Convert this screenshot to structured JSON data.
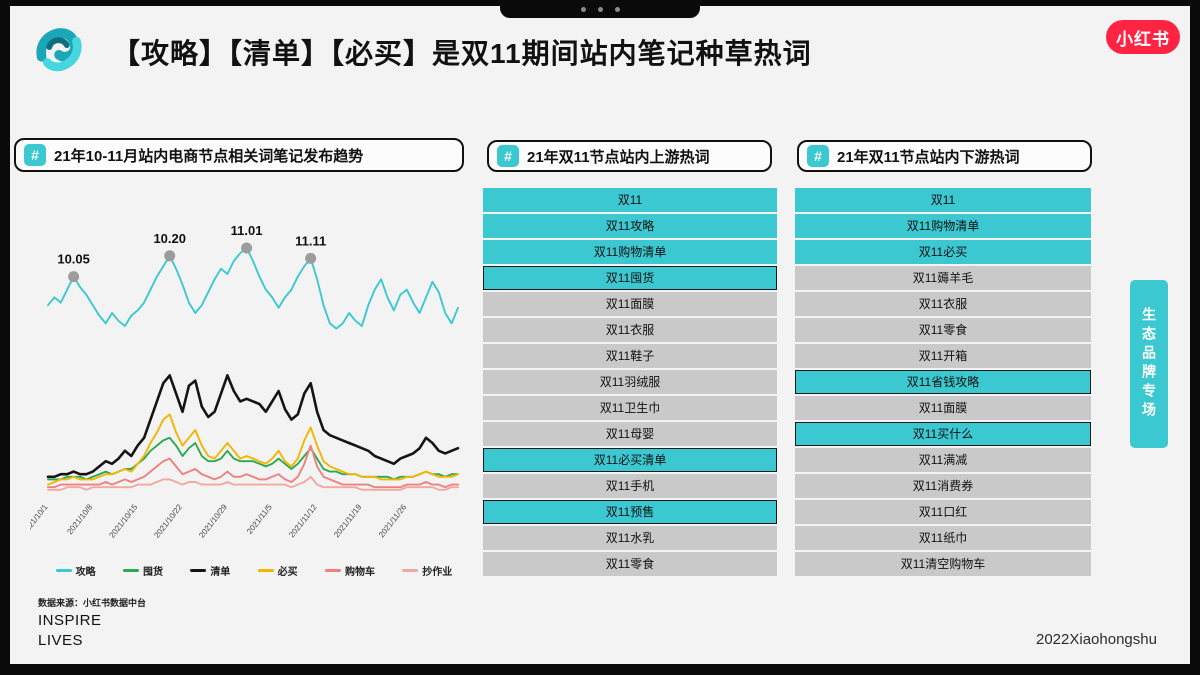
{
  "colors": {
    "accent_teal": "#3CC8D0",
    "row_gray": "#C9C9C9",
    "brand_red": "#FF2442",
    "annotation_dot": "#9C9C9C",
    "frame_black": "#0A0A0A"
  },
  "header": {
    "title": "【攻略】【清单】【必买】是双11期间站内笔记种草热词",
    "brand_badge": "小红书"
  },
  "panels": {
    "trend": {
      "badge": "#",
      "title": "21年10-11月站内电商节点相关词笔记发布趋势",
      "source": "数据来源：小红书数据中台"
    },
    "upstream": {
      "badge": "#",
      "title": "21年双11节点站内上游热词",
      "items": [
        {
          "label": "双11",
          "highlight": true,
          "outlined": false
        },
        {
          "label": "双11攻略",
          "highlight": true,
          "outlined": false
        },
        {
          "label": "双11购物清单",
          "highlight": true,
          "outlined": false
        },
        {
          "label": "双11囤货",
          "highlight": true,
          "outlined": true
        },
        {
          "label": "双11面膜",
          "highlight": false,
          "outlined": false
        },
        {
          "label": "双11衣服",
          "highlight": false,
          "outlined": false
        },
        {
          "label": "双11鞋子",
          "highlight": false,
          "outlined": false
        },
        {
          "label": "双11羽绒服",
          "highlight": false,
          "outlined": false
        },
        {
          "label": "双11卫生巾",
          "highlight": false,
          "outlined": false
        },
        {
          "label": "双11母婴",
          "highlight": false,
          "outlined": false
        },
        {
          "label": "双11必买清单",
          "highlight": true,
          "outlined": true
        },
        {
          "label": "双11手机",
          "highlight": false,
          "outlined": false
        },
        {
          "label": "双11预售",
          "highlight": true,
          "outlined": true
        },
        {
          "label": "双11水乳",
          "highlight": false,
          "outlined": false
        },
        {
          "label": "双11零食",
          "highlight": false,
          "outlined": false
        }
      ]
    },
    "downstream": {
      "badge": "#",
      "title": "21年双11节点站内下游热词",
      "items": [
        {
          "label": "双11",
          "highlight": true,
          "outlined": false
        },
        {
          "label": "双11购物清单",
          "highlight": true,
          "outlined": false
        },
        {
          "label": "双11必买",
          "highlight": true,
          "outlined": false
        },
        {
          "label": "双11薅羊毛",
          "highlight": false,
          "outlined": false
        },
        {
          "label": "双11衣服",
          "highlight": false,
          "outlined": false
        },
        {
          "label": "双11零食",
          "highlight": false,
          "outlined": false
        },
        {
          "label": "双11开箱",
          "highlight": false,
          "outlined": false
        },
        {
          "label": "双11省钱攻略",
          "highlight": true,
          "outlined": true
        },
        {
          "label": "双11面膜",
          "highlight": false,
          "outlined": false
        },
        {
          "label": "双11买什么",
          "highlight": true,
          "outlined": true
        },
        {
          "label": "双11满减",
          "highlight": false,
          "outlined": false
        },
        {
          "label": "双11消费券",
          "highlight": false,
          "outlined": false
        },
        {
          "label": "双11口红",
          "highlight": false,
          "outlined": false
        },
        {
          "label": "双11纸巾",
          "highlight": false,
          "outlined": false
        },
        {
          "label": "双11清空购物车",
          "highlight": false,
          "outlined": false
        }
      ]
    }
  },
  "side_tab": {
    "label": "生态品牌专场"
  },
  "footer": {
    "inspire_line1": "INSPIRE",
    "inspire_line2": "LIVES",
    "credit": "2022Xiaohongshu"
  },
  "chart_data": {
    "type": "line",
    "title": "21年10-11月站内电商节点相关词笔记发布趋势",
    "n_points": 65,
    "ylim": [
      0,
      100
    ],
    "grid": false,
    "legend_position": "bottom",
    "annotation_dot_color": "#9C9C9C",
    "x_tick_labels": [
      "2021/10/1",
      "2021/10/8",
      "2021/10/15",
      "2021/10/22",
      "2021/10/29",
      "2021/11/5",
      "2021/11/12",
      "2021/11/19",
      "2021/11/26"
    ],
    "x_tick_indices": [
      0,
      7,
      14,
      21,
      28,
      35,
      42,
      49,
      56
    ],
    "annotations": [
      {
        "label": "10.05",
        "index": 4
      },
      {
        "label": "10.20",
        "index": 19
      },
      {
        "label": "11.01",
        "index": 31
      },
      {
        "label": "11.11",
        "index": 41
      }
    ],
    "series": [
      {
        "name": "攻略",
        "color": "#3CC8D0",
        "values": [
          73,
          76,
          74,
          79,
          84,
          80,
          77,
          73,
          69,
          66,
          70,
          67,
          65,
          69,
          71,
          74,
          79,
          84,
          88,
          92,
          87,
          81,
          74,
          70,
          73,
          78,
          83,
          87,
          85,
          90,
          93,
          95,
          90,
          84,
          79,
          76,
          72,
          76,
          79,
          84,
          88,
          91,
          83,
          73,
          66,
          64,
          66,
          70,
          67,
          65,
          73,
          79,
          83,
          76,
          71,
          77,
          79,
          74,
          70,
          76,
          82,
          78,
          70,
          66,
          72
        ]
      },
      {
        "name": "囤货",
        "color": "#2AA952",
        "values": [
          6,
          6,
          6,
          7,
          7,
          7,
          6,
          7,
          8,
          9,
          8,
          9,
          10,
          10,
          12,
          14,
          17,
          19,
          21,
          22,
          19,
          15,
          18,
          20,
          15,
          13,
          13,
          14,
          17,
          14,
          13,
          13,
          13,
          12,
          11,
          12,
          14,
          12,
          10,
          12,
          15,
          18,
          14,
          10,
          9,
          9,
          8,
          8,
          8,
          7,
          7,
          7,
          7,
          7,
          6,
          7,
          7,
          7,
          8,
          9,
          8,
          8,
          7,
          8,
          8
        ]
      },
      {
        "name": "清单",
        "color": "#141414",
        "values": [
          7,
          7,
          8,
          8,
          9,
          8,
          8,
          9,
          11,
          13,
          12,
          14,
          17,
          15,
          19,
          22,
          29,
          36,
          43,
          46,
          39,
          32,
          42,
          44,
          34,
          30,
          32,
          39,
          46,
          40,
          36,
          37,
          36,
          35,
          32,
          36,
          40,
          33,
          29,
          31,
          39,
          43,
          32,
          25,
          23,
          22,
          21,
          20,
          19,
          18,
          17,
          15,
          14,
          13,
          12,
          14,
          15,
          16,
          18,
          22,
          20,
          17,
          16,
          17,
          18
        ]
      },
      {
        "name": "必买",
        "color": "#F2B600",
        "values": [
          4,
          5,
          6,
          6,
          7,
          6,
          6,
          6,
          7,
          8,
          8,
          9,
          10,
          9,
          12,
          15,
          20,
          24,
          29,
          31,
          24,
          19,
          22,
          25,
          19,
          15,
          14,
          17,
          20,
          17,
          14,
          15,
          14,
          13,
          12,
          14,
          17,
          13,
          11,
          14,
          21,
          26,
          19,
          13,
          11,
          10,
          9,
          8,
          8,
          7,
          7,
          7,
          6,
          6,
          6,
          6,
          7,
          7,
          8,
          9,
          8,
          7,
          7,
          7,
          8
        ]
      },
      {
        "name": "购物车",
        "color": "#EF8080",
        "values": [
          3,
          3,
          4,
          4,
          4,
          4,
          4,
          4,
          4,
          5,
          4,
          5,
          6,
          5,
          6,
          7,
          9,
          11,
          13,
          14,
          11,
          8,
          9,
          10,
          8,
          7,
          6,
          7,
          9,
          7,
          7,
          8,
          7,
          6,
          6,
          7,
          8,
          6,
          5,
          7,
          12,
          19,
          11,
          7,
          6,
          5,
          4,
          4,
          4,
          4,
          4,
          3,
          3,
          3,
          3,
          3,
          4,
          4,
          4,
          5,
          4,
          4,
          3,
          4,
          4
        ]
      },
      {
        "name": "抄作业",
        "color": "#F3A89E",
        "values": [
          2,
          2,
          2,
          3,
          3,
          3,
          2,
          3,
          3,
          3,
          3,
          3,
          3,
          3,
          4,
          4,
          4,
          5,
          6,
          6,
          5,
          4,
          5,
          5,
          4,
          4,
          4,
          4,
          5,
          4,
          4,
          4,
          4,
          4,
          4,
          4,
          4,
          4,
          3,
          4,
          5,
          7,
          4,
          3,
          3,
          3,
          3,
          3,
          3,
          2,
          2,
          2,
          2,
          2,
          2,
          2,
          3,
          3,
          3,
          3,
          3,
          2,
          2,
          3,
          3
        ]
      }
    ]
  }
}
